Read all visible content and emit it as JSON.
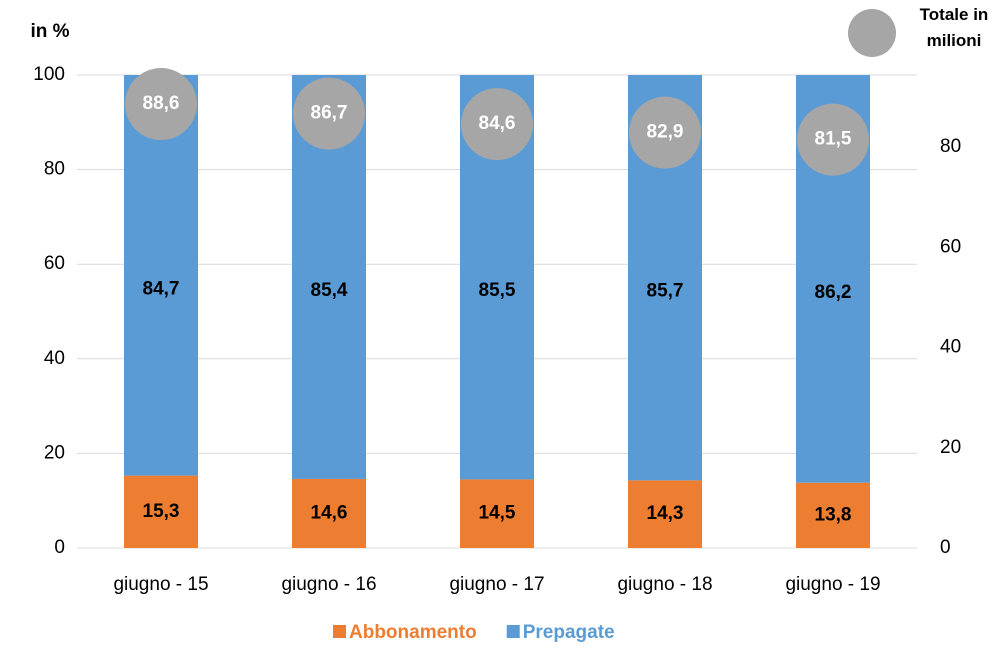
{
  "chart_data": {
    "type": "stacked_bar",
    "y_label": "in %",
    "categories": [
      "giugno - 15",
      "giugno - 16",
      "giugno - 17",
      "giugno - 18",
      "giugno - 19"
    ],
    "series": [
      {
        "name": "Abbonamento",
        "color": "#ed7d31",
        "values": [
          15.3,
          14.6,
          14.5,
          14.3,
          13.8
        ],
        "value_labels": [
          "15,3",
          "14,6",
          "14,5",
          "14,3",
          "13,8"
        ]
      },
      {
        "name": "Prepagate",
        "color": "#5b9bd5",
        "values": [
          84.7,
          85.4,
          85.5,
          85.7,
          86.2
        ],
        "value_labels": [
          "84,7",
          "85,4",
          "85,5",
          "85,7",
          "86,2"
        ]
      },
      {
        "name": "Totale in milioni",
        "color": "#a6a6a6",
        "axis": "y2",
        "values": [
          88.6,
          86.7,
          84.6,
          82.9,
          81.5
        ],
        "value_labels": [
          "88,6",
          "86,7",
          "84,6",
          "82,9",
          "81,5"
        ]
      }
    ],
    "ylim": [
      0,
      100
    ],
    "yticks": [
      0,
      20,
      40,
      60,
      80,
      100
    ],
    "y2lim": [
      0,
      94.4
    ],
    "y2ticks": [
      0,
      20,
      40,
      60,
      80
    ],
    "grid": true
  }
}
